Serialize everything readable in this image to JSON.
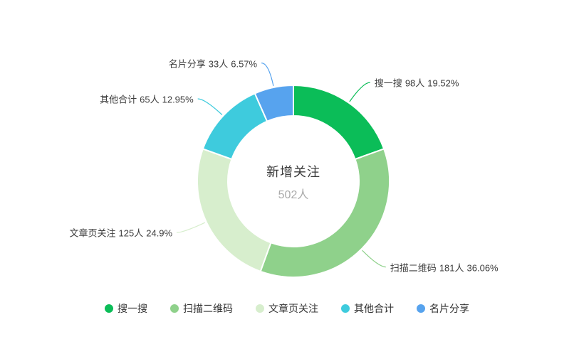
{
  "chart_data": {
    "type": "pie",
    "subtype": "donut",
    "title": "新增关注",
    "center": {
      "title": "新增关注",
      "value": "502人"
    },
    "total_value": 502,
    "unit": "人",
    "start_angle_deg": 0,
    "direction": "clockwise",
    "legend_position": "bottom",
    "grid": false,
    "slices": [
      {
        "name": "搜一搜",
        "value": 98,
        "count_label": "98人",
        "percent_label": "19.52%",
        "color": "#0bbd58"
      },
      {
        "name": "扫描二维码",
        "value": 181,
        "count_label": "181人",
        "percent_label": "36.06%",
        "color": "#8fd18b"
      },
      {
        "name": "文章页关注",
        "value": 125,
        "count_label": "125人",
        "percent_label": "24.9%",
        "color": "#d7eecd"
      },
      {
        "name": "其他合计",
        "value": 65,
        "count_label": "65人",
        "percent_label": "12.95%",
        "color": "#3ecbdd"
      },
      {
        "name": "名片分享",
        "value": 33,
        "count_label": "33人",
        "percent_label": "6.57%",
        "color": "#57a3ee"
      }
    ]
  }
}
